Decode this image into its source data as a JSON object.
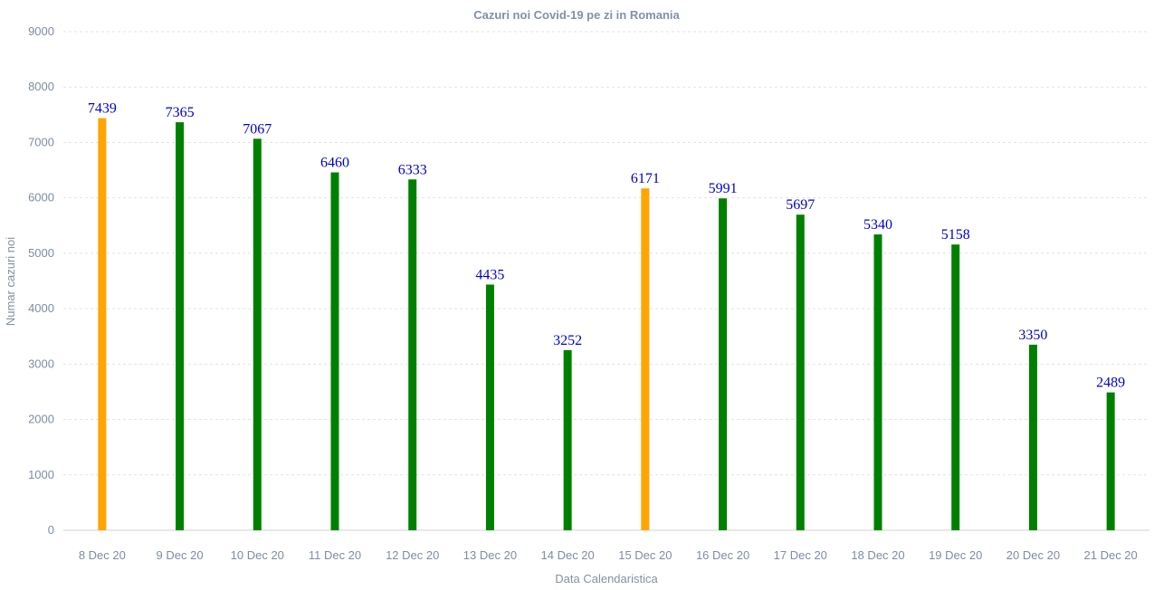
{
  "chart_data": {
    "type": "bar",
    "title": "Cazuri noi Covid-19 pe zi in Romania",
    "xlabel": "Data Calendaristica",
    "ylabel": "Numar cazuri noi",
    "ylim": [
      0,
      9000
    ],
    "yticks": [
      0,
      1000,
      2000,
      3000,
      4000,
      5000,
      6000,
      7000,
      8000,
      9000
    ],
    "grid": true,
    "categories": [
      "8 Dec 20",
      "9 Dec 20",
      "10 Dec 20",
      "11 Dec 20",
      "12 Dec 20",
      "13 Dec 20",
      "14 Dec 20",
      "15 Dec 20",
      "16 Dec 20",
      "17 Dec 20",
      "18 Dec 20",
      "19 Dec 20",
      "20 Dec 20",
      "21 Dec 20"
    ],
    "values": [
      7439,
      7365,
      7067,
      6460,
      6333,
      4435,
      3252,
      6171,
      5991,
      5697,
      5340,
      5158,
      3350,
      2489
    ],
    "bar_colors": [
      "#ffa500",
      "#008000",
      "#008000",
      "#008000",
      "#008000",
      "#008000",
      "#008000",
      "#ffa500",
      "#008000",
      "#008000",
      "#008000",
      "#008000",
      "#008000",
      "#008000"
    ],
    "data_label_color": "#0000cd"
  }
}
